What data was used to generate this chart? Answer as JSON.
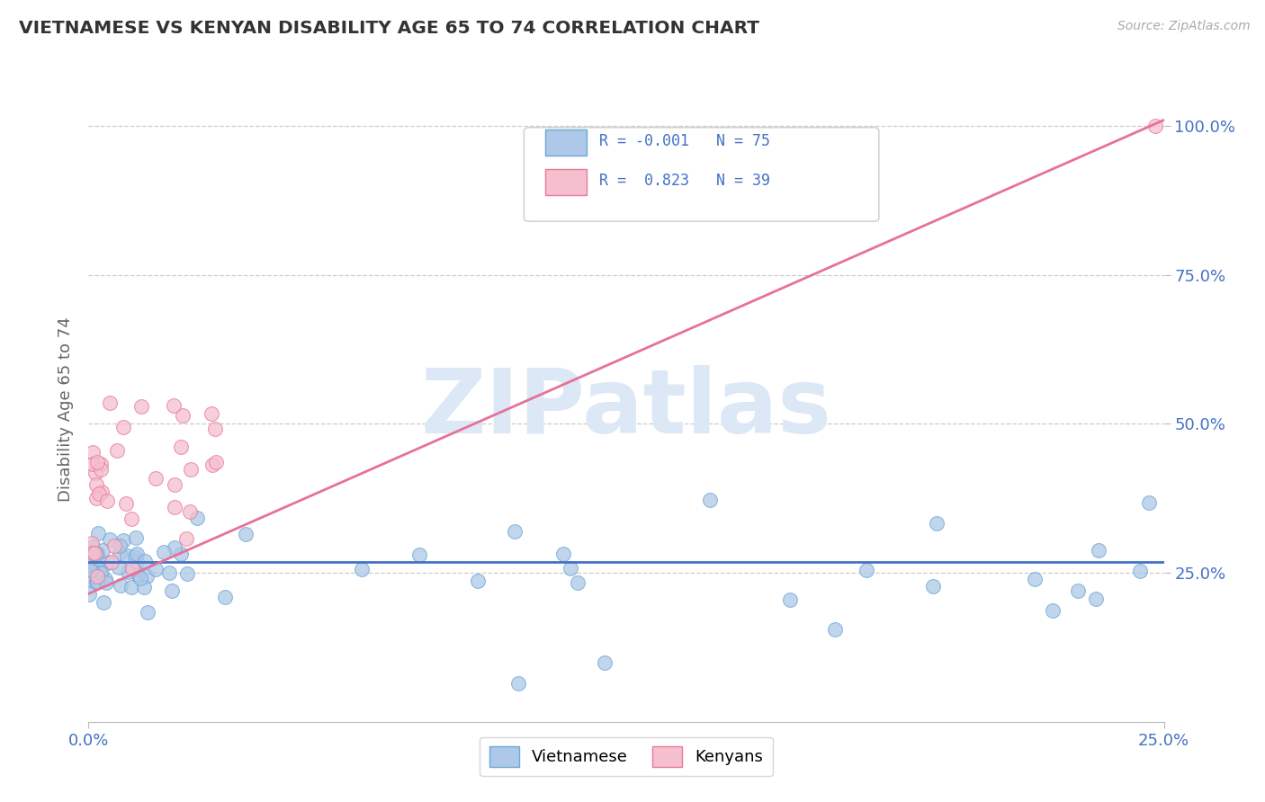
{
  "title": "VIETNAMESE VS KENYAN DISABILITY AGE 65 TO 74 CORRELATION CHART",
  "source_text": "Source: ZipAtlas.com",
  "ylabel": "Disability Age 65 to 74",
  "xlim": [
    0.0,
    0.25
  ],
  "ylim": [
    0.0,
    1.05
  ],
  "viet_color": "#adc8e8",
  "viet_edge": "#6fa8d4",
  "kenya_color": "#f5bfce",
  "kenya_edge": "#e87a9a",
  "viet_line_color": "#4472c4",
  "kenya_line_color": "#e8709a",
  "watermark": "ZIPatlas",
  "watermark_color": "#dce8f5",
  "background_color": "#ffffff",
  "grid_color": "#c8c8c8",
  "title_color": "#333333",
  "label_color": "#666666",
  "tick_color": "#4472c4",
  "viet_line_y": 0.268,
  "kenya_line_x0": 0.0,
  "kenya_line_y0": 0.215,
  "kenya_line_x1": 0.25,
  "kenya_line_y1": 1.01
}
